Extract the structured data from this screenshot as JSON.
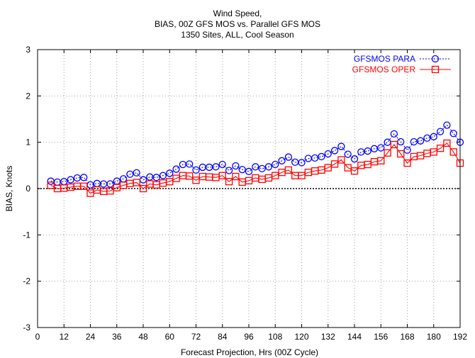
{
  "chart_data": {
    "type": "line",
    "title_lines": [
      "Wind Speed,",
      "BIAS, 00Z GFS MOS vs. Parallel GFS MOS",
      "1350 Sites, ALL, Cool Season"
    ],
    "xlabel": "Forecast Projection, Hrs (00Z Cycle)",
    "ylabel": "BIAS, Knots",
    "xlim": [
      0,
      192
    ],
    "ylim": [
      -3,
      3
    ],
    "xticks": [
      0,
      12,
      24,
      36,
      48,
      60,
      72,
      84,
      96,
      108,
      120,
      132,
      144,
      156,
      168,
      180,
      192
    ],
    "yticks": [
      -3,
      -2,
      -1,
      0,
      1,
      2,
      3
    ],
    "grid": true,
    "zero_line": true,
    "legend_position": "top-right",
    "x": [
      6,
      9,
      12,
      15,
      18,
      21,
      24,
      27,
      30,
      33,
      36,
      39,
      42,
      45,
      48,
      51,
      54,
      57,
      60,
      63,
      66,
      69,
      72,
      75,
      78,
      81,
      84,
      87,
      90,
      93,
      96,
      99,
      102,
      105,
      108,
      111,
      114,
      117,
      120,
      123,
      126,
      129,
      132,
      135,
      138,
      141,
      144,
      147,
      150,
      153,
      156,
      159,
      162,
      165,
      168,
      171,
      174,
      177,
      180,
      183,
      186,
      189,
      192
    ],
    "series": [
      {
        "name": "GFSMOS PARA",
        "color": "#0000ff",
        "marker": "circle",
        "line_style": "dotted",
        "values": [
          0.16,
          0.14,
          0.15,
          0.19,
          0.23,
          0.24,
          0.08,
          0.11,
          0.1,
          0.1,
          0.16,
          0.21,
          0.31,
          0.34,
          0.19,
          0.25,
          0.24,
          0.28,
          0.33,
          0.42,
          0.52,
          0.53,
          0.4,
          0.46,
          0.46,
          0.47,
          0.52,
          0.39,
          0.49,
          0.41,
          0.37,
          0.47,
          0.43,
          0.47,
          0.52,
          0.6,
          0.68,
          0.57,
          0.56,
          0.65,
          0.66,
          0.69,
          0.75,
          0.82,
          0.91,
          0.74,
          0.64,
          0.79,
          0.81,
          0.86,
          0.88,
          1.0,
          1.18,
          1.01,
          0.83,
          1.01,
          1.03,
          1.09,
          1.12,
          1.23,
          1.37,
          1.19,
          1.0
        ]
      },
      {
        "name": "GFSMOS OPER",
        "color": "#ff0000",
        "marker": "square",
        "line_style": "solid",
        "values": [
          0.07,
          0.0,
          0.01,
          0.03,
          0.05,
          0.05,
          -0.1,
          -0.03,
          -0.06,
          -0.05,
          0.02,
          0.07,
          0.11,
          0.13,
          0.0,
          0.1,
          0.08,
          0.12,
          0.15,
          0.22,
          0.28,
          0.27,
          0.18,
          0.26,
          0.25,
          0.24,
          0.28,
          0.15,
          0.26,
          0.14,
          0.17,
          0.23,
          0.2,
          0.23,
          0.28,
          0.35,
          0.4,
          0.28,
          0.28,
          0.35,
          0.38,
          0.4,
          0.45,
          0.53,
          0.62,
          0.45,
          0.38,
          0.5,
          0.52,
          0.58,
          0.6,
          0.77,
          0.95,
          0.75,
          0.55,
          0.69,
          0.71,
          0.76,
          0.79,
          0.87,
          0.98,
          0.79,
          0.55
        ]
      }
    ]
  }
}
